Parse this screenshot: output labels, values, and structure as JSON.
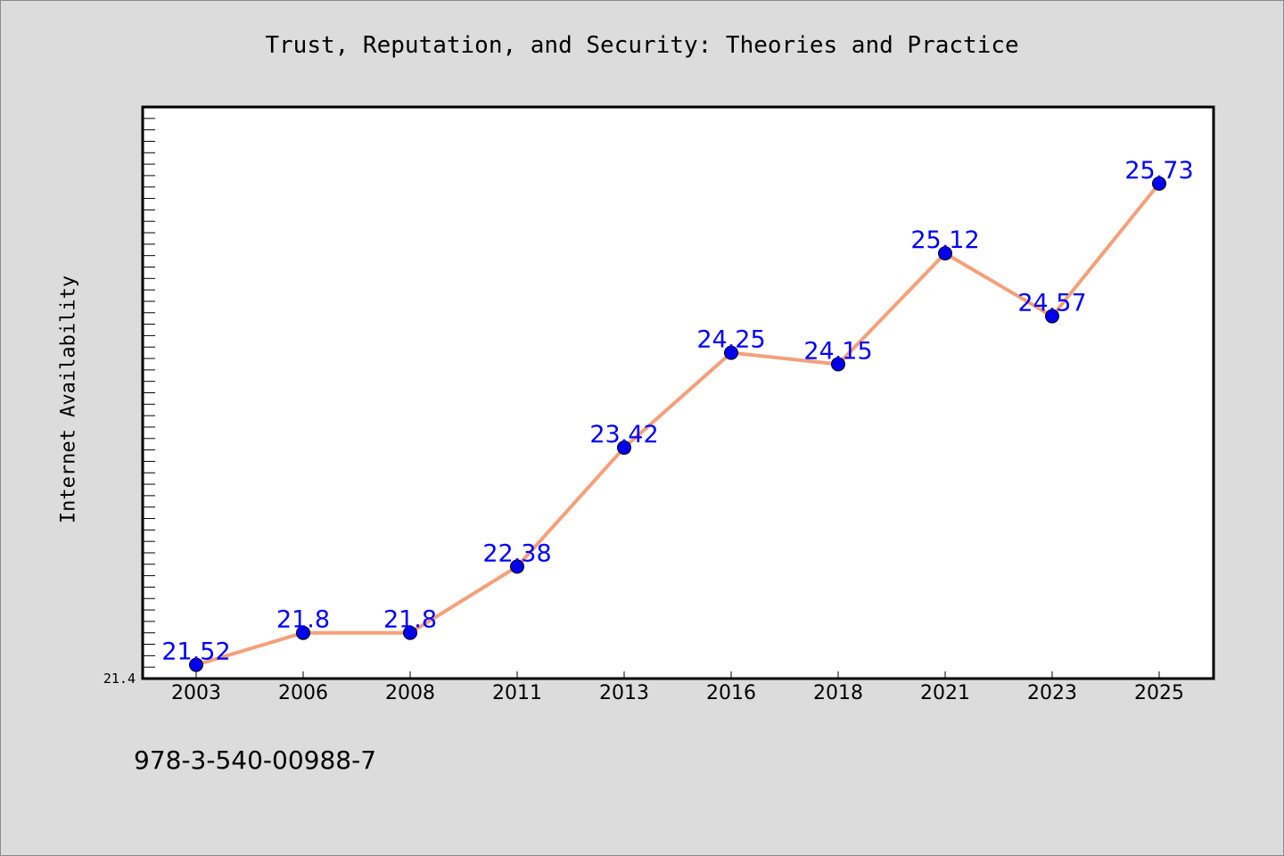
{
  "chart_data": {
    "type": "line",
    "title": "Trust, Reputation, and Security: Theories and Practice",
    "xlabel": "",
    "ylabel": "Internet Availability",
    "categories": [
      "2003",
      "2006",
      "2008",
      "2011",
      "2013",
      "2016",
      "2018",
      "2021",
      "2023",
      "2025"
    ],
    "series": [
      {
        "values": [
          21.52,
          21.8,
          21.8,
          22.38,
          23.42,
          24.25,
          24.15,
          25.12,
          24.57,
          25.73
        ],
        "labels": [
          "21.52",
          "21.8",
          "21.8",
          "22.38",
          "23.42",
          "24.25",
          "24.15",
          "25.12",
          "24.57",
          "25.73"
        ]
      }
    ],
    "ylim": [
      21.4,
      26.4
    ],
    "yticks": [
      "21.4"
    ],
    "grid": false,
    "colors": {
      "line": "#f4a07a",
      "marker": "#0000ee",
      "label": "#0000ff",
      "plot_bg": "#ffffff",
      "page_bg": "#dcdcdc"
    }
  },
  "footnote": "978-3-540-00988-7"
}
